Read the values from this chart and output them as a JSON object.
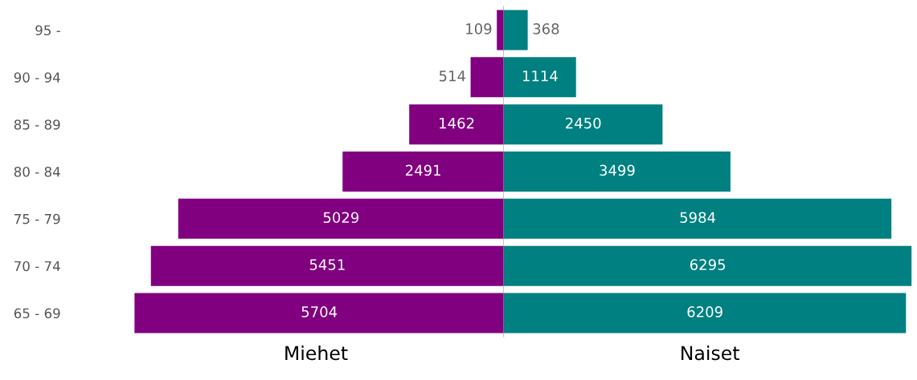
{
  "chart_data": [
    {
      "type": "bar",
      "orientation": "horizontal",
      "xlabel": "Miehet",
      "categories": [
        "95 -",
        "90 - 94",
        "85 - 89",
        "80 - 84",
        "75 - 79",
        "70 - 74",
        "65 - 69"
      ],
      "values": [
        109,
        514,
        1462,
        2491,
        5029,
        5451,
        5704
      ],
      "color": "#800080",
      "data_labels": true,
      "tick_labels": "y"
    },
    {
      "type": "bar",
      "orientation": "horizontal",
      "xlabel": "Naiset",
      "values": [
        368,
        1114,
        2450,
        3499,
        5984,
        6295,
        6209
      ],
      "color": "#008080",
      "data_labels": true,
      "tick_labels": false
    }
  ]
}
